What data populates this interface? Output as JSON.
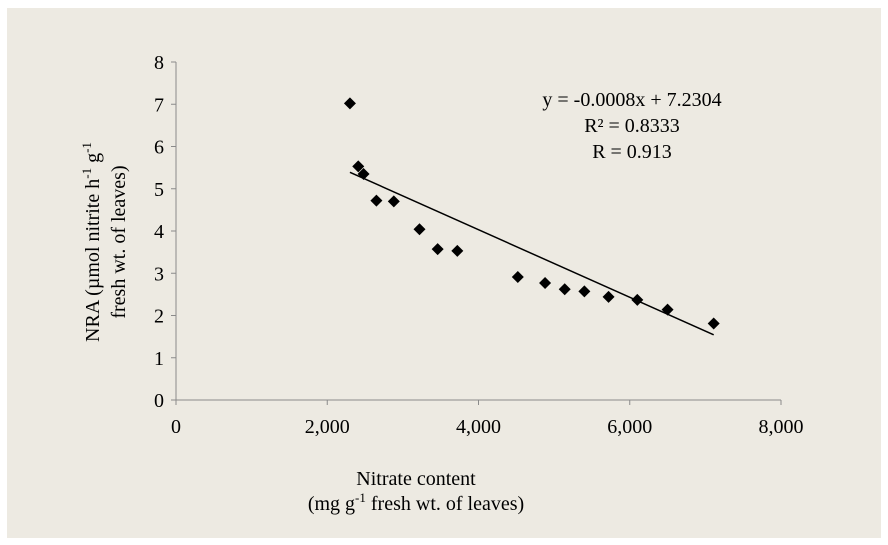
{
  "chart_data": {
    "type": "scatter",
    "title": "",
    "x": [
      2300,
      2410,
      2480,
      2650,
      2880,
      3220,
      3460,
      3720,
      4520,
      4880,
      5140,
      5400,
      5720,
      6100,
      6500,
      7110
    ],
    "y": [
      7.02,
      5.53,
      5.35,
      4.72,
      4.7,
      4.04,
      3.57,
      3.53,
      2.91,
      2.77,
      2.62,
      2.57,
      2.44,
      2.37,
      2.14,
      1.81
    ],
    "xlim": [
      0,
      8000
    ],
    "ylim": [
      0,
      8
    ],
    "xticks": [
      0,
      2000,
      4000,
      6000,
      8000
    ],
    "xtick_labels": [
      "0",
      "2,000",
      "4,000",
      "6,000",
      "8,000"
    ],
    "yticks": [
      0,
      1,
      2,
      3,
      4,
      5,
      6,
      7,
      8
    ],
    "ytick_labels": [
      "0",
      "1",
      "2",
      "3",
      "4",
      "5",
      "6",
      "7",
      "8"
    ],
    "grid": false,
    "marker": "diamond",
    "marker_color": "#000000",
    "trendline": {
      "slope": -0.0008,
      "intercept": 7.2304,
      "x_start": 2300,
      "x_end": 7110
    },
    "xlabel": {
      "line1": "Nitrate content",
      "line2_prefix": "(mg g",
      "line2_sup": "-1",
      "line2_suffix": " fresh wt. of leaves)"
    },
    "ylabel": {
      "line1_prefix": "NRA (µmol nitrite h",
      "line1_sup1": "-1",
      "line1_mid": " g",
      "line1_sup2": "-1",
      "line2": "fresh wt. of leaves)"
    },
    "annotations": [
      "y = -0.0008x + 7.2304",
      "R² = 0.8333",
      "R = 0.913"
    ],
    "background": "#edeae2"
  }
}
